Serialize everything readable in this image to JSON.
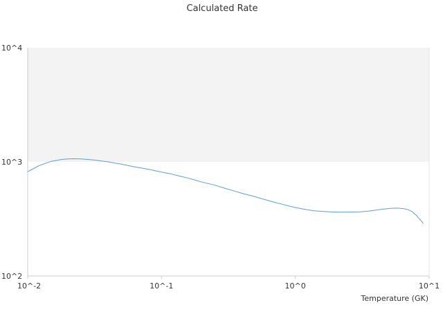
{
  "chart_data": {
    "type": "line",
    "title": "Calculated Rate",
    "xlabel": "Temperature (GK)",
    "ylabel": "",
    "x_scale": "log",
    "y_scale": "log",
    "xlim": [
      0.01,
      10
    ],
    "ylim": [
      100,
      10000
    ],
    "x_ticks": [
      {
        "value": 0.01,
        "label": "10^-2"
      },
      {
        "value": 0.1,
        "label": "10^-1"
      },
      {
        "value": 1,
        "label": "10^0"
      },
      {
        "value": 10,
        "label": "10^1"
      }
    ],
    "y_ticks": [
      {
        "value": 100,
        "label": "10^2"
      },
      {
        "value": 1000,
        "label": "10^3"
      },
      {
        "value": 10000,
        "label": "10^4"
      }
    ],
    "bands": [
      {
        "from": 1000,
        "to": 10000,
        "color": "#f3f3f3"
      }
    ],
    "grid": false,
    "legend": "none",
    "colors": {
      "series": "#5b9de1",
      "axis": "#cccccc",
      "band": "#f3f3f3"
    },
    "series": [
      {
        "x": [
          0.01,
          0.011,
          0.012,
          0.0135,
          0.015,
          0.0165,
          0.018,
          0.02,
          0.022,
          0.025,
          0.028,
          0.032,
          0.036,
          0.04,
          0.045,
          0.05,
          0.056,
          0.063,
          0.07,
          0.08,
          0.09,
          0.1,
          0.12,
          0.14,
          0.16,
          0.18,
          0.2,
          0.25,
          0.3,
          0.35,
          0.4,
          0.5,
          0.6,
          0.7,
          0.8,
          0.9,
          1.0,
          1.2,
          1.4,
          1.6,
          1.8,
          2.0,
          2.5,
          3.0,
          3.5,
          4.0,
          4.5,
          5.0,
          5.5,
          6.0,
          6.5,
          7.0,
          7.5,
          8.0,
          8.5,
          9.0
        ],
        "values": [
          820,
          870,
          920,
          970,
          1010,
          1030,
          1050,
          1060,
          1065,
          1062,
          1050,
          1035,
          1015,
          1000,
          975,
          955,
          930,
          905,
          885,
          860,
          835,
          815,
          780,
          745,
          718,
          690,
          665,
          625,
          585,
          555,
          530,
          495,
          465,
          442,
          425,
          410,
          398,
          382,
          372,
          368,
          365,
          363,
          363,
          364,
          370,
          378,
          385,
          390,
          393,
          392,
          388,
          380,
          365,
          340,
          315,
          290
        ]
      }
    ]
  }
}
